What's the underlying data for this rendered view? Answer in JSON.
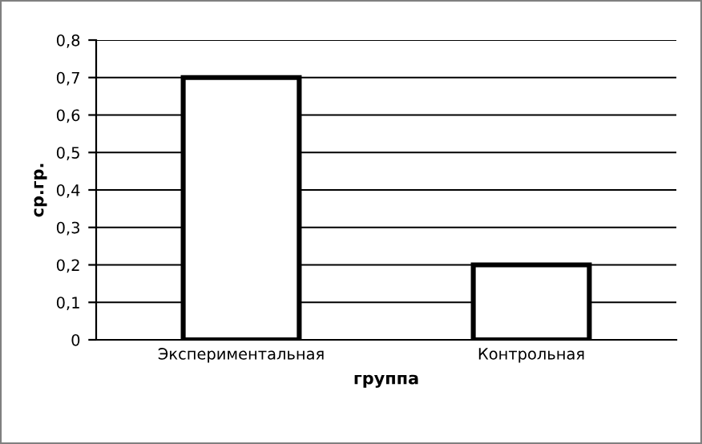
{
  "chart_data": {
    "type": "bar",
    "xlabel": "группа",
    "ylabel": "ср.гр.",
    "categories": [
      "Экспериментальная",
      "Контрольная"
    ],
    "values": [
      0.7,
      0.2
    ],
    "color": "#ffffff",
    "ylim": [
      0,
      0.8
    ],
    "yticks": [
      0,
      {
        "value": 0.1,
        "label": "0,1"
      },
      {
        "value": 0.2,
        "label": "0,2"
      },
      {
        "value": 0.3,
        "label": "0,3"
      },
      {
        "value": 0.4,
        "label": "0,4"
      },
      {
        "value": 0.5,
        "label": "0,5"
      },
      {
        "value": 0.6,
        "label": "0,6"
      },
      {
        "value": 0.7,
        "label": "0,7"
      },
      {
        "value": 0.8,
        "label": "0,8"
      }
    ],
    "grid": "y",
    "legend": false
  }
}
